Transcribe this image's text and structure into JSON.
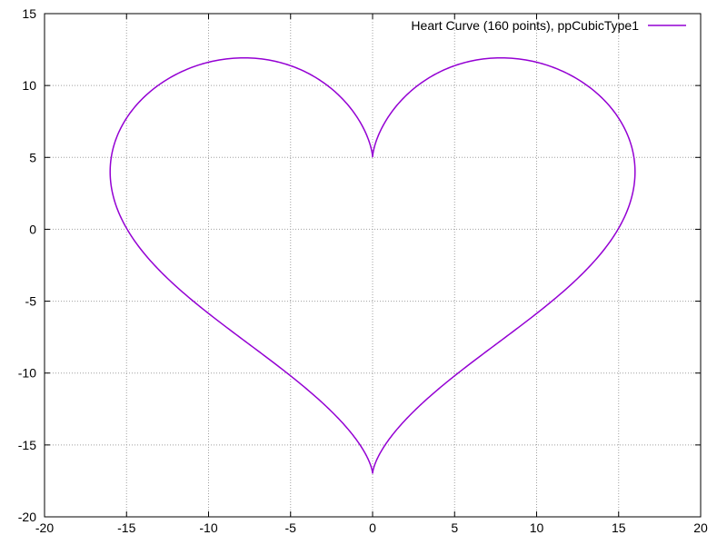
{
  "chart_data": {
    "type": "line",
    "title": "",
    "xlabel": "",
    "ylabel": "",
    "xlim": [
      -20,
      20
    ],
    "ylim": [
      -20,
      15
    ],
    "xticks": [
      -20,
      -15,
      -10,
      -5,
      0,
      5,
      10,
      15,
      20
    ],
    "yticks": [
      -20,
      -15,
      -10,
      -5,
      0,
      5,
      10,
      15
    ],
    "xtick_labels": [
      "-20",
      "-15",
      "-10",
      "-5",
      "0",
      "5",
      "10",
      "15",
      "20"
    ],
    "ytick_labels": [
      "-20",
      "-15",
      "-10",
      "-5",
      "0",
      "5",
      "10",
      "15"
    ],
    "grid": true,
    "legend_position": "top-right",
    "series": [
      {
        "name": "Heart Curve (160 points), ppCubicType1",
        "color": "#9400d3",
        "curve": "heart",
        "num_points": 160
      }
    ]
  }
}
